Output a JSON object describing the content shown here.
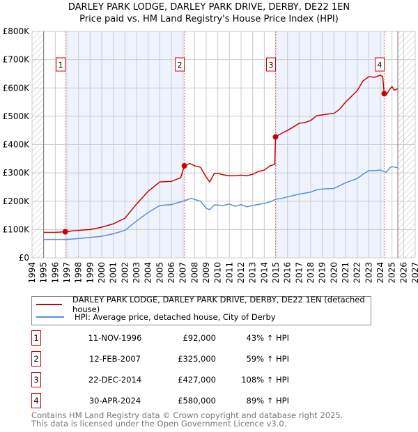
{
  "title_line1": "DARLEY PARK LODGE, DARLEY PARK DRIVE, DERBY, DE22 1EN",
  "title_line2": "Price paid vs. HM Land Registry's House Price Index (HPI)",
  "chart_data": {
    "type": "line",
    "xlim": [
      1994,
      2027
    ],
    "ylim": [
      0,
      800000
    ],
    "y_ticks": [
      {
        "v": 0,
        "label": "£0"
      },
      {
        "v": 100000,
        "label": "£100K"
      },
      {
        "v": 200000,
        "label": "£200K"
      },
      {
        "v": 300000,
        "label": "£300K"
      },
      {
        "v": 400000,
        "label": "£400K"
      },
      {
        "v": 500000,
        "label": "£500K"
      },
      {
        "v": 600000,
        "label": "£600K"
      },
      {
        "v": 700000,
        "label": "£700K"
      },
      {
        "v": 800000,
        "label": "£800K"
      }
    ],
    "x_ticks": [
      "1994",
      "1995",
      "1996",
      "1997",
      "1998",
      "1999",
      "2000",
      "2001",
      "2002",
      "2003",
      "2004",
      "2005",
      "2006",
      "2007",
      "2008",
      "2009",
      "2010",
      "2011",
      "2012",
      "2013",
      "2014",
      "2015",
      "2016",
      "2017",
      "2018",
      "2019",
      "2020",
      "2021",
      "2022",
      "2023",
      "2024",
      "2025",
      "2026",
      "2027"
    ],
    "hatched_ranges": [
      [
        1994,
        1995
      ],
      [
        2025.5,
        2027
      ]
    ],
    "shaded_ranges": [
      [
        1996.86,
        2007.12
      ],
      [
        2014.97,
        2024.33
      ]
    ],
    "series": [
      {
        "name": "DARLEY PARK LODGE, DARLEY PARK DRIVE, DERBY, DE22 1EN (detached house)",
        "color": "#cc0000",
        "points": [
          [
            1995,
            90000
          ],
          [
            1996,
            90000
          ],
          [
            1996.86,
            92000
          ],
          [
            1997.5,
            95000
          ],
          [
            1998,
            97000
          ],
          [
            1999,
            100000
          ],
          [
            2000,
            108000
          ],
          [
            2001,
            120000
          ],
          [
            2002,
            140000
          ],
          [
            2003,
            190000
          ],
          [
            2004,
            235000
          ],
          [
            2005,
            268000
          ],
          [
            2006,
            270000
          ],
          [
            2006.8,
            283000
          ],
          [
            2007.12,
            325000
          ],
          [
            2007.6,
            333000
          ],
          [
            2008,
            325000
          ],
          [
            2008.5,
            320000
          ],
          [
            2009,
            285000
          ],
          [
            2009.3,
            268000
          ],
          [
            2009.7,
            298000
          ],
          [
            2010,
            298000
          ],
          [
            2010.5,
            293000
          ],
          [
            2011,
            290000
          ],
          [
            2011.5,
            290000
          ],
          [
            2012,
            292000
          ],
          [
            2012.5,
            290000
          ],
          [
            2013,
            295000
          ],
          [
            2013.5,
            305000
          ],
          [
            2014,
            310000
          ],
          [
            2014.5,
            325000
          ],
          [
            2014.9,
            330000
          ],
          [
            2014.97,
            427000
          ],
          [
            2015.5,
            440000
          ],
          [
            2016,
            450000
          ],
          [
            2016.5,
            462000
          ],
          [
            2017,
            475000
          ],
          [
            2017.5,
            478000
          ],
          [
            2018,
            485000
          ],
          [
            2018.5,
            502000
          ],
          [
            2019,
            505000
          ],
          [
            2019.5,
            508000
          ],
          [
            2020,
            510000
          ],
          [
            2020.5,
            525000
          ],
          [
            2021,
            550000
          ],
          [
            2021.5,
            570000
          ],
          [
            2022,
            590000
          ],
          [
            2022.5,
            625000
          ],
          [
            2023,
            640000
          ],
          [
            2023.5,
            638000
          ],
          [
            2024,
            645000
          ],
          [
            2024.2,
            640000
          ],
          [
            2024.33,
            580000
          ],
          [
            2024.5,
            575000
          ],
          [
            2024.8,
            595000
          ],
          [
            2025,
            605000
          ],
          [
            2025.2,
            592000
          ],
          [
            2025.5,
            597000
          ]
        ]
      },
      {
        "name": "HPI: Average price, detached house, City of Derby",
        "color": "#5b8fd6",
        "points": [
          [
            1995,
            65000
          ],
          [
            1997,
            65000
          ],
          [
            1998,
            68000
          ],
          [
            1999,
            72000
          ],
          [
            2000,
            76000
          ],
          [
            2001,
            85000
          ],
          [
            2002,
            97000
          ],
          [
            2003,
            130000
          ],
          [
            2004,
            160000
          ],
          [
            2005,
            185000
          ],
          [
            2006,
            188000
          ],
          [
            2007,
            200000
          ],
          [
            2007.7,
            210000
          ],
          [
            2008.5,
            200000
          ],
          [
            2009,
            175000
          ],
          [
            2009.3,
            170000
          ],
          [
            2009.7,
            187000
          ],
          [
            2010.5,
            185000
          ],
          [
            2011,
            190000
          ],
          [
            2011.5,
            182000
          ],
          [
            2012,
            188000
          ],
          [
            2012.5,
            180000
          ],
          [
            2013,
            185000
          ],
          [
            2014,
            192000
          ],
          [
            2014.5,
            198000
          ],
          [
            2015,
            207000
          ],
          [
            2015.5,
            210000
          ],
          [
            2016,
            215000
          ],
          [
            2017,
            225000
          ],
          [
            2018,
            232000
          ],
          [
            2018.5,
            240000
          ],
          [
            2019,
            243000
          ],
          [
            2020,
            245000
          ],
          [
            2020.5,
            255000
          ],
          [
            2021,
            265000
          ],
          [
            2022,
            280000
          ],
          [
            2022.5,
            295000
          ],
          [
            2023,
            308000
          ],
          [
            2023.5,
            308000
          ],
          [
            2024,
            310000
          ],
          [
            2024.5,
            302000
          ],
          [
            2024.8,
            318000
          ],
          [
            2025,
            322000
          ],
          [
            2025.5,
            318000
          ]
        ]
      }
    ],
    "sales": [
      {
        "label": "1",
        "x": 1996.86,
        "value": 92000
      },
      {
        "label": "2",
        "x": 2007.12,
        "value": 325000
      },
      {
        "label": "3",
        "x": 2014.97,
        "value": 427000
      },
      {
        "label": "4",
        "x": 2024.33,
        "value": 580000
      }
    ]
  },
  "legend": {
    "red": "DARLEY PARK LODGE, DARLEY PARK DRIVE, DERBY, DE22 1EN (detached house)",
    "blue": "HPI: Average price, detached house, City of Derby"
  },
  "table": [
    {
      "num": "1",
      "date": "11-NOV-1996",
      "price": "£92,000",
      "hpi": "43% ↑ HPI"
    },
    {
      "num": "2",
      "date": "12-FEB-2007",
      "price": "£325,000",
      "hpi": "59% ↑ HPI"
    },
    {
      "num": "3",
      "date": "22-DEC-2014",
      "price": "£427,000",
      "hpi": "108% ↑ HPI"
    },
    {
      "num": "4",
      "date": "30-APR-2024",
      "price": "£580,000",
      "hpi": "89% ↑ HPI"
    }
  ],
  "footer1": "Contains HM Land Registry data © Crown copyright and database right 2025.",
  "footer2": "This data is licensed under the Open Government Licence v3.0."
}
